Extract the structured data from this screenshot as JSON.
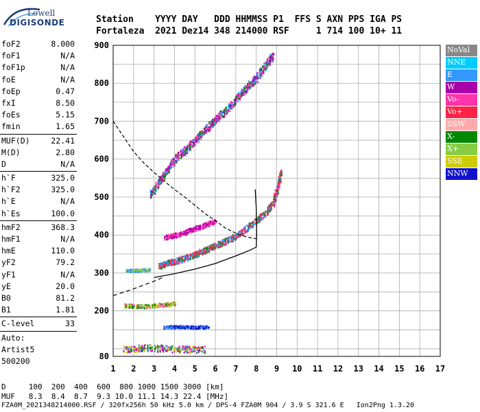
{
  "logo": {
    "line1": "Lowell",
    "line2": "DIGISONDE"
  },
  "header": {
    "line1": "Station    YYYY DAY   DDD HHMMSS P1  FFS S AXN PPS IGA PS",
    "line2": "Fortaleza  2021 Dez14 348 214000 RSF     1 714 100 10+ 11"
  },
  "params": [
    {
      "key": "foF2",
      "value": "8.000"
    },
    {
      "key": "foF1",
      "value": "N/A"
    },
    {
      "key": "foF1p",
      "value": "N/A"
    },
    {
      "key": "foE",
      "value": "N/A"
    },
    {
      "key": "foEp",
      "value": "0.47"
    },
    {
      "key": "fxI",
      "value": "8.50"
    },
    {
      "key": "foEs",
      "value": "5.15"
    },
    {
      "key": "fmin",
      "value": "1.65"
    },
    {
      "sep": true
    },
    {
      "key": "MUF(D)",
      "value": "22.41"
    },
    {
      "key": "M(D)",
      "value": "2.80"
    },
    {
      "key": "D",
      "value": "N/A"
    },
    {
      "sep": true
    },
    {
      "key": "h`F",
      "value": "325.0"
    },
    {
      "key": "h`F2",
      "value": "325.0"
    },
    {
      "key": "h`E",
      "value": "N/A"
    },
    {
      "key": "h`Es",
      "value": "100.0"
    },
    {
      "sep": true
    },
    {
      "key": "hmF2",
      "value": "368.3"
    },
    {
      "key": "hmF1",
      "value": "N/A"
    },
    {
      "key": "hmE",
      "value": "110.0"
    },
    {
      "key": "yF2",
      "value": "79.2"
    },
    {
      "key": "yF1",
      "value": "N/A"
    },
    {
      "key": "yE",
      "value": "20.0"
    },
    {
      "key": "B0",
      "value": "81.2"
    },
    {
      "key": "B1",
      "value": "1.81"
    },
    {
      "sep": true
    },
    {
      "key": "C-level",
      "value": "33"
    },
    {
      "sep": true
    },
    {
      "text": "Auto:"
    },
    {
      "text": "Artist5"
    },
    {
      "text": "500200"
    }
  ],
  "legend": [
    {
      "label": "NoVal",
      "color": "#888888"
    },
    {
      "label": "NNE",
      "color": "#00ccff"
    },
    {
      "label": "E",
      "color": "#3399ff"
    },
    {
      "label": "W",
      "color": "#aa00aa"
    },
    {
      "label": "Vo-",
      "color": "#ff33aa"
    },
    {
      "label": "Vo+",
      "color": "#ff2244"
    },
    {
      "label": "SSW",
      "color": "#ffaaaa"
    },
    {
      "label": "X-",
      "color": "#008800"
    },
    {
      "label": "X+",
      "color": "#88cc44"
    },
    {
      "label": "SSE",
      "color": "#cccc00"
    },
    {
      "label": "NNW",
      "color": "#1111cc"
    }
  ],
  "footer": {
    "line1": "D     100  200  400  600  800 1000 1500 3000 [km]",
    "line2": "MUF   8.3  8.4  8.7  9.3 10.0 11.1 14.3 22.4 [MHz]",
    "line3": "FZA0M_2021348214000.RSF / 320fx256h 50 kHz 5.0 km / DPS-4 FZA0M 904 / 3.9 S 321.6 E   Ion2Png 1.3.20"
  },
  "chart_data": {
    "type": "scatter",
    "xlim": [
      1,
      17
    ],
    "ylim": [
      80,
      900
    ],
    "xticks": [
      1,
      2,
      3,
      4,
      5,
      6,
      7,
      8,
      9,
      10,
      11,
      12,
      13,
      14,
      15,
      16,
      17
    ],
    "yticks": [
      80,
      200,
      300,
      400,
      500,
      600,
      700,
      800,
      900
    ],
    "grid": true,
    "echo_traces": [
      {
        "name": "F2 O-trace",
        "points": [
          [
            3.2,
            318
          ],
          [
            3.6,
            326
          ],
          [
            4.0,
            332
          ],
          [
            4.5,
            340
          ],
          [
            5.0,
            350
          ],
          [
            5.5,
            362
          ],
          [
            6.0,
            374
          ],
          [
            6.5,
            386
          ],
          [
            7.0,
            398
          ],
          [
            7.5,
            418
          ],
          [
            8.0,
            440
          ],
          [
            8.4,
            458
          ],
          [
            8.8,
            485
          ],
          [
            9.0,
            520
          ],
          [
            9.2,
            570
          ]
        ],
        "colors": [
          "#ff2244",
          "#3399ff",
          "#008800",
          "#ff33aa"
        ],
        "spread": 8
      },
      {
        "name": "F2 multi-hop",
        "points": [
          [
            2.8,
            505
          ],
          [
            3.2,
            540
          ],
          [
            3.6,
            570
          ],
          [
            4.0,
            600
          ],
          [
            4.5,
            625
          ],
          [
            5.0,
            650
          ],
          [
            5.5,
            680
          ],
          [
            6.0,
            705
          ],
          [
            6.5,
            730
          ],
          [
            7.0,
            760
          ],
          [
            7.5,
            790
          ],
          [
            8.0,
            815
          ],
          [
            8.4,
            845
          ],
          [
            8.8,
            875
          ]
        ],
        "colors": [
          "#ff33aa",
          "#008800",
          "#aa00aa",
          "#3399ff"
        ],
        "spread": 10
      },
      {
        "name": "W cluster",
        "points": [
          [
            3.5,
            395
          ],
          [
            4.0,
            400
          ],
          [
            4.5,
            408
          ],
          [
            5.0,
            418
          ],
          [
            5.5,
            428
          ],
          [
            6.0,
            438
          ]
        ],
        "colors": [
          "#aa00aa",
          "#ff33aa"
        ],
        "spread": 6
      },
      {
        "name": "Es 210",
        "points": [
          [
            1.5,
            215
          ],
          [
            2.5,
            213
          ],
          [
            3.5,
            218
          ],
          [
            4.0,
            220
          ]
        ],
        "colors": [
          "#008800",
          "#cccc00",
          "#88cc44",
          "#ff33aa"
        ],
        "spread": 5
      },
      {
        "name": "Es 160",
        "points": [
          [
            3.5,
            158
          ],
          [
            4.2,
            160
          ],
          [
            5.0,
            158
          ],
          [
            5.7,
            160
          ]
        ],
        "colors": [
          "#1111cc",
          "#3399ff"
        ],
        "spread": 4
      },
      {
        "name": "Es 100",
        "points": [
          [
            1.5,
            100
          ],
          [
            2.5,
            104
          ],
          [
            3.5,
            102
          ],
          [
            4.5,
            100
          ],
          [
            5.5,
            100
          ]
        ],
        "colors": [
          "#3399ff",
          "#008800",
          "#cccc00",
          "#ff33aa",
          "#aa00aa"
        ],
        "spread": 9
      },
      {
        "name": "Lower F",
        "points": [
          [
            1.6,
            307
          ],
          [
            2.2,
            308
          ],
          [
            2.8,
            310
          ]
        ],
        "colors": [
          "#88cc44",
          "#3399ff"
        ],
        "spread": 4
      }
    ],
    "profile_solid": [
      [
        3.0,
        288
      ],
      [
        4.0,
        298
      ],
      [
        5.0,
        310
      ],
      [
        6.0,
        325
      ],
      [
        7.0,
        345
      ],
      [
        7.7,
        360
      ],
      [
        8.0,
        368
      ],
      [
        8.02,
        400
      ],
      [
        8.0,
        470
      ],
      [
        7.95,
        520
      ]
    ],
    "profile_dashed": [
      [
        1.0,
        240
      ],
      [
        2.0,
        258
      ],
      [
        3.0,
        278
      ],
      [
        3.5,
        290
      ]
    ],
    "model_curve_dashed": [
      [
        1.0,
        700
      ],
      [
        1.5,
        660
      ],
      [
        2.0,
        620
      ],
      [
        2.5,
        590
      ],
      [
        3.0,
        565
      ],
      [
        3.5,
        542
      ],
      [
        4.0,
        520
      ],
      [
        4.5,
        500
      ],
      [
        5.0,
        478
      ],
      [
        5.5,
        456
      ],
      [
        6.0,
        438
      ],
      [
        6.5,
        418
      ],
      [
        7.0,
        405
      ],
      [
        7.5,
        395
      ],
      [
        8.0,
        390
      ]
    ]
  }
}
